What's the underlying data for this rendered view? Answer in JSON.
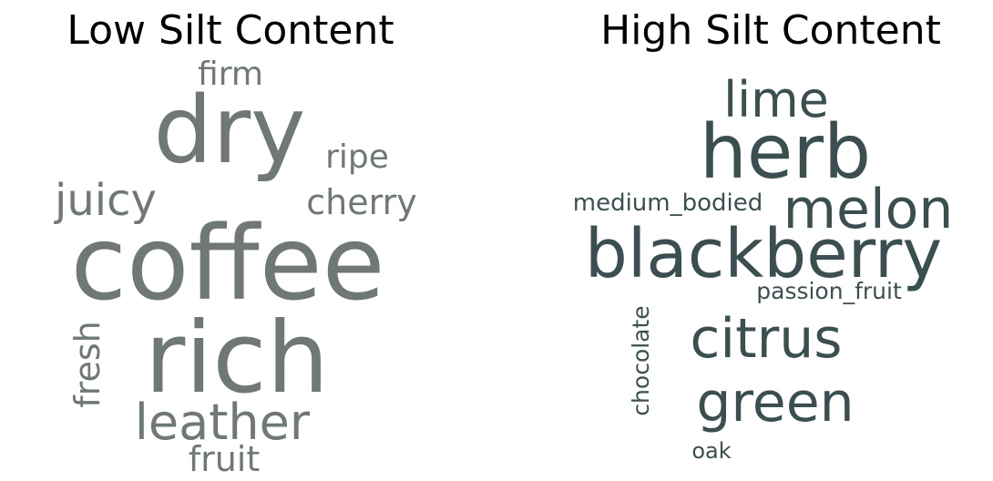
{
  "chart_data": [
    {
      "type": "wordcloud",
      "title": "Low Silt Content",
      "color": "#6f7777",
      "words": [
        {
          "text": "coffee",
          "weight": 1.0
        },
        {
          "text": "rich",
          "weight": 0.96
        },
        {
          "text": "dry",
          "weight": 0.9
        },
        {
          "text": "leather",
          "weight": 0.5
        },
        {
          "text": "juicy",
          "weight": 0.44
        },
        {
          "text": "fresh",
          "weight": 0.34
        },
        {
          "text": "cherry",
          "weight": 0.34
        },
        {
          "text": "fruit",
          "weight": 0.34
        },
        {
          "text": "ripe",
          "weight": 0.32
        },
        {
          "text": "firm",
          "weight": 0.32
        }
      ]
    },
    {
      "type": "wordcloud",
      "title": "High Silt Content",
      "color": "#3b4f51",
      "words": [
        {
          "text": "blackberry",
          "weight": 1.0
        },
        {
          "text": "herb",
          "weight": 0.98
        },
        {
          "text": "melon",
          "weight": 0.8
        },
        {
          "text": "citrus",
          "weight": 0.8
        },
        {
          "text": "green",
          "weight": 0.8
        },
        {
          "text": "lime",
          "weight": 0.72
        },
        {
          "text": "medium_bodied",
          "weight": 0.3
        },
        {
          "text": "passion_fruit",
          "weight": 0.3
        },
        {
          "text": "chocolate",
          "weight": 0.3
        },
        {
          "text": "oak",
          "weight": 0.26
        }
      ]
    }
  ]
}
